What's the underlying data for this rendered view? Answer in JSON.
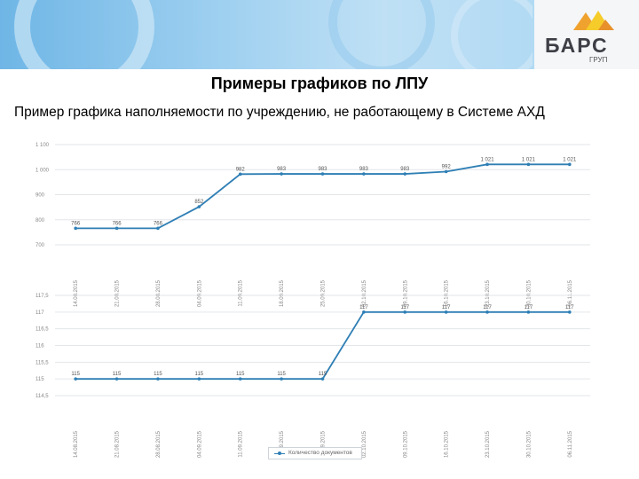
{
  "header": {
    "logo_text": "БАРС",
    "logo_sub": "ГРУП"
  },
  "slide": {
    "title": "Примеры графиков по ЛПУ",
    "subtitle": "Пример графика наполняемости по учреждению, не работающему в Системе АХД"
  },
  "colors": {
    "series": "#2f7fb5",
    "grid": "#e3e6ea",
    "accent_orange": "#f0a22e",
    "accent_yellow": "#f5cc2a"
  },
  "legend": {
    "label": "Количество документов"
  },
  "chart_data": [
    {
      "type": "line",
      "categories": [
        "14.08.2015",
        "21.08.2015",
        "28.08.2015",
        "04.09.2015",
        "11.09.2015",
        "18.09.2015",
        "25.09.2015",
        "02.10.2015",
        "09.10.2015",
        "16.10.2015",
        "23.10.2015",
        "30.10.2015",
        "06.11.2015"
      ],
      "y_ticks": [
        "1 100",
        "1 000",
        "900",
        "800",
        "700"
      ],
      "ylim": [
        700,
        1100
      ],
      "series": [
        {
          "values": [
            766,
            766,
            766,
            852,
            982,
            983,
            983,
            983,
            983,
            992,
            1021,
            1021,
            1021
          ],
          "labels": [
            "766",
            "766",
            "766",
            "852",
            "982",
            "983",
            "983",
            "983",
            "983",
            "992",
            "1 021",
            "1 021",
            "1 021"
          ]
        }
      ]
    },
    {
      "type": "line",
      "categories": [
        "14.08.2015",
        "21.08.2015",
        "28.08.2015",
        "04.09.2015",
        "11.09.2015",
        "18.09.2015",
        "25.09.2015",
        "02.10.2015",
        "09.10.2015",
        "16.10.2015",
        "23.10.2015",
        "30.10.2015",
        "06.11.2015"
      ],
      "y_ticks": [
        "117,5",
        "117",
        "116,5",
        "116",
        "115,5",
        "115",
        "114,5"
      ],
      "ylim": [
        114.5,
        117.5
      ],
      "series": [
        {
          "name": "Количество документов",
          "values": [
            115,
            115,
            115,
            115,
            115,
            115,
            115,
            117,
            117,
            117,
            117,
            117,
            117
          ],
          "labels": [
            "115",
            "115",
            "115",
            "115",
            "115",
            "115",
            "115",
            "117",
            "117",
            "117",
            "117",
            "117",
            "117"
          ]
        }
      ]
    }
  ]
}
